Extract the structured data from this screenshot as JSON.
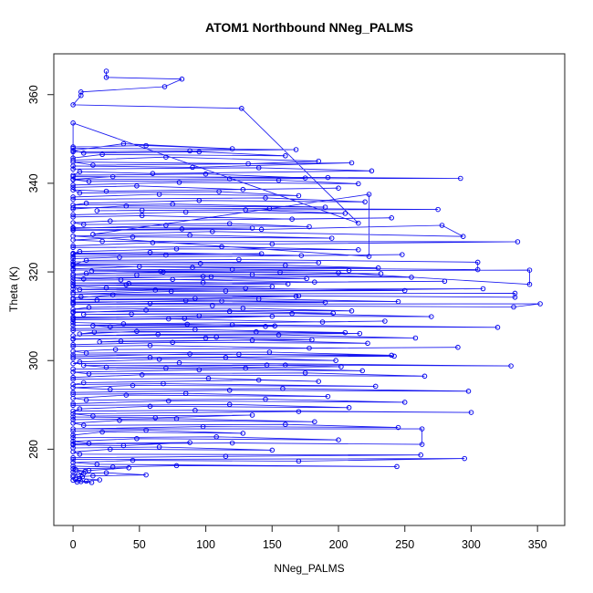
{
  "chart_data": {
    "type": "line",
    "title": "ATOM1 Northbound NNeg_PALMS",
    "xlabel": "NNeg_PALMS",
    "ylabel": "Theta (K)",
    "xlim": [
      -14.5,
      370.5
    ],
    "ylim": [
      262.8,
      369.2
    ],
    "xticks": [
      0,
      50,
      100,
      150,
      200,
      250,
      300,
      350
    ],
    "yticks": [
      280,
      300,
      320,
      340,
      360
    ],
    "grid": false,
    "legend": "none",
    "marker": "open-circle",
    "series_color": "#0000EE",
    "axis_color": "#333333",
    "text_color": "#000000",
    "points": [
      [
        25,
        365.3
      ],
      [
        25,
        363.9
      ],
      [
        82,
        363.5
      ],
      [
        69,
        361.8
      ],
      [
        6,
        360.6
      ],
      [
        6,
        359.8
      ],
      [
        0,
        357.7
      ],
      [
        127,
        356.9
      ],
      [
        215,
        331.0
      ],
      [
        0,
        353.6
      ],
      [
        0,
        348.2
      ],
      [
        55,
        348.5
      ],
      [
        120,
        347.8
      ],
      [
        38,
        348.9
      ],
      [
        0,
        347.4
      ],
      [
        8,
        346.8
      ],
      [
        95,
        347.1
      ],
      [
        160,
        346.2
      ],
      [
        22,
        346.5
      ],
      [
        0,
        345.7
      ],
      [
        0,
        347.9
      ],
      [
        168,
        347.6
      ],
      [
        88,
        347.3
      ],
      [
        0,
        347.1
      ],
      [
        0,
        345.2
      ],
      [
        70,
        345.9
      ],
      [
        185,
        345.0
      ],
      [
        132,
        344.4
      ],
      [
        0,
        344.8
      ],
      [
        15,
        344.1
      ],
      [
        210,
        344.6
      ],
      [
        90,
        343.6
      ],
      [
        0,
        343.9
      ],
      [
        0,
        343.2
      ],
      [
        140,
        343.5
      ],
      [
        225,
        342.8
      ],
      [
        60,
        342.2
      ],
      [
        5,
        342.6
      ],
      [
        0,
        341.8
      ],
      [
        100,
        342.1
      ],
      [
        175,
        341.2
      ],
      [
        30,
        341.5
      ],
      [
        0,
        340.9
      ],
      [
        0,
        341.5
      ],
      [
        192,
        341.3
      ],
      [
        292,
        341.1
      ],
      [
        118,
        341.0
      ],
      [
        0,
        340.8
      ],
      [
        12,
        340.4
      ],
      [
        155,
        340.7
      ],
      [
        215,
        339.9
      ],
      [
        80,
        340.2
      ],
      [
        0,
        339.6
      ],
      [
        0,
        339.1
      ],
      [
        48,
        339.4
      ],
      [
        128,
        338.6
      ],
      [
        200,
        338.9
      ],
      [
        25,
        338.2
      ],
      [
        0,
        338.5
      ],
      [
        5,
        337.8
      ],
      [
        110,
        338.1
      ],
      [
        170,
        337.2
      ],
      [
        65,
        337.5
      ],
      [
        0,
        336.9
      ],
      [
        0,
        336.4
      ],
      [
        145,
        336.7
      ],
      [
        220,
        335.8
      ],
      [
        95,
        336.1
      ],
      [
        10,
        335.5
      ],
      [
        0,
        335.1
      ],
      [
        75,
        335.3
      ],
      [
        190,
        334.6
      ],
      [
        40,
        334.9
      ],
      [
        0,
        334.2
      ],
      [
        0,
        334.5
      ],
      [
        148,
        334.3
      ],
      [
        275,
        334.1
      ],
      [
        52,
        333.9
      ],
      [
        18,
        333.8
      ],
      [
        130,
        334.0
      ],
      [
        205,
        333.2
      ],
      [
        85,
        333.5
      ],
      [
        0,
        332.9
      ],
      [
        0,
        332.4
      ],
      [
        52,
        332.7
      ],
      [
        165,
        331.9
      ],
      [
        240,
        332.2
      ],
      [
        28,
        331.5
      ],
      [
        0,
        331.1
      ],
      [
        8,
        330.7
      ],
      [
        118,
        330.9
      ],
      [
        178,
        330.2
      ],
      [
        70,
        330.5
      ],
      [
        0,
        329.8
      ],
      [
        0,
        330.0
      ],
      [
        135,
        329.9
      ],
      [
        82,
        329.7
      ],
      [
        0,
        329.5
      ],
      [
        0,
        329.4
      ],
      [
        142,
        329.6
      ],
      [
        278,
        330.5
      ],
      [
        294,
        328.0
      ],
      [
        105,
        329.1
      ],
      [
        15,
        328.5
      ],
      [
        223,
        337.5
      ],
      [
        223,
        323.5
      ],
      [
        0,
        328.1
      ],
      [
        88,
        328.3
      ],
      [
        195,
        327.6
      ],
      [
        45,
        327.9
      ],
      [
        0,
        327.2
      ],
      [
        22,
        326.9
      ],
      [
        335,
        326.8
      ],
      [
        150,
        326.3
      ],
      [
        60,
        326.6
      ],
      [
        0,
        325.9
      ],
      [
        0,
        325.5
      ],
      [
        112,
        325.7
      ],
      [
        215,
        325.0
      ],
      [
        78,
        325.2
      ],
      [
        5,
        324.6
      ],
      [
        0,
        324.2
      ],
      [
        58,
        324.4
      ],
      [
        172,
        323.7
      ],
      [
        248,
        323.9
      ],
      [
        35,
        323.3
      ],
      [
        0,
        323.0
      ],
      [
        0,
        324.0
      ],
      [
        142,
        324.1
      ],
      [
        70,
        323.8
      ],
      [
        0,
        323.5
      ],
      [
        0,
        322.3
      ],
      [
        185,
        322.1
      ],
      [
        96,
        321.9
      ],
      [
        0,
        321.6
      ],
      [
        10,
        322.6
      ],
      [
        125,
        322.8
      ],
      [
        305,
        322.2
      ],
      [
        305,
        320.5
      ],
      [
        90,
        321.0
      ],
      [
        0,
        321.4
      ],
      [
        0,
        321.8
      ],
      [
        160,
        321.5
      ],
      [
        230,
        320.9
      ],
      [
        50,
        321.2
      ],
      [
        0,
        320.7
      ],
      [
        0,
        320.4
      ],
      [
        120,
        320.6
      ],
      [
        208,
        320.3
      ],
      [
        66,
        320.1
      ],
      [
        14,
        320.2
      ],
      [
        344,
        320.4
      ],
      [
        344,
        317.2
      ],
      [
        200,
        319.8
      ],
      [
        68,
        320.0
      ],
      [
        0,
        319.5
      ],
      [
        10,
        319.7
      ],
      [
        156,
        319.9
      ],
      [
        232,
        319.6
      ],
      [
        48,
        319.3
      ],
      [
        0,
        319.2
      ],
      [
        135,
        319.4
      ],
      [
        255,
        318.8
      ],
      [
        98,
        319.0
      ],
      [
        8,
        318.4
      ],
      [
        0,
        318.7
      ],
      [
        104,
        318.9
      ],
      [
        176,
        318.5
      ],
      [
        36,
        318.2
      ],
      [
        0,
        318.1
      ],
      [
        75,
        318.3
      ],
      [
        182,
        317.7
      ],
      [
        280,
        317.9
      ],
      [
        42,
        317.4
      ],
      [
        0,
        317.5
      ],
      [
        98,
        317.6
      ],
      [
        162,
        317.3
      ],
      [
        40,
        317.1
      ],
      [
        0,
        317.0
      ],
      [
        150,
        316.7
      ],
      [
        25,
        316.4
      ],
      [
        0,
        316.8
      ],
      [
        5,
        316.0
      ],
      [
        309,
        316.2
      ],
      [
        115,
        315.7
      ],
      [
        62,
        315.9
      ],
      [
        0,
        315.4
      ],
      [
        0,
        316.1
      ],
      [
        130,
        316.3
      ],
      [
        250,
        315.8
      ],
      [
        74,
        315.6
      ],
      [
        0,
        315.0
      ],
      [
        333,
        315.2
      ],
      [
        333,
        314.3
      ],
      [
        170,
        314.6
      ],
      [
        30,
        314.8
      ],
      [
        0,
        314.1
      ],
      [
        6,
        314.4
      ],
      [
        168,
        314.5
      ],
      [
        92,
        314.0
      ],
      [
        0,
        313.8
      ],
      [
        18,
        313.7
      ],
      [
        140,
        313.9
      ],
      [
        245,
        313.3
      ],
      [
        85,
        313.5
      ],
      [
        0,
        313.0
      ],
      [
        0,
        313.2
      ],
      [
        112,
        313.4
      ],
      [
        190,
        313.1
      ],
      [
        58,
        312.9
      ],
      [
        0,
        312.7
      ],
      [
        352,
        312.8
      ],
      [
        332,
        312.1
      ],
      [
        105,
        312.4
      ],
      [
        12,
        312.0
      ],
      [
        0,
        311.6
      ],
      [
        128,
        311.8
      ],
      [
        210,
        311.2
      ],
      [
        55,
        311.4
      ],
      [
        0,
        310.8
      ],
      [
        0,
        311.0
      ],
      [
        118,
        311.1
      ],
      [
        196,
        310.7
      ],
      [
        44,
        310.5
      ],
      [
        8,
        310.4
      ],
      [
        165,
        310.6
      ],
      [
        270,
        309.9
      ],
      [
        95,
        310.1
      ],
      [
        0,
        309.6
      ],
      [
        0,
        309.8
      ],
      [
        150,
        310.0
      ],
      [
        84,
        309.5
      ],
      [
        0,
        309.3
      ],
      [
        0,
        309.2
      ],
      [
        72,
        309.4
      ],
      [
        188,
        308.7
      ],
      [
        235,
        308.9
      ],
      [
        38,
        308.3
      ],
      [
        0,
        308.6
      ],
      [
        0,
        308.0
      ],
      [
        86,
        308.2
      ],
      [
        152,
        307.8
      ],
      [
        28,
        307.6
      ],
      [
        15,
        307.9
      ],
      [
        120,
        308.1
      ],
      [
        320,
        307.5
      ],
      [
        145,
        307.7
      ],
      [
        0,
        307.2
      ],
      [
        0,
        306.8
      ],
      [
        92,
        307.0
      ],
      [
        205,
        306.3
      ],
      [
        48,
        306.6
      ],
      [
        5,
        306.0
      ],
      [
        16,
        306.4
      ],
      [
        138,
        306.5
      ],
      [
        216,
        306.1
      ],
      [
        64,
        305.9
      ],
      [
        0,
        305.6
      ],
      [
        155,
        305.8
      ],
      [
        258,
        305.1
      ],
      [
        108,
        305.3
      ],
      [
        0,
        304.8
      ],
      [
        0,
        304.9
      ],
      [
        100,
        305.1
      ],
      [
        180,
        304.7
      ],
      [
        36,
        304.4
      ],
      [
        20,
        304.2
      ],
      [
        135,
        304.6
      ],
      [
        222,
        303.9
      ],
      [
        75,
        304.1
      ],
      [
        0,
        303.6
      ],
      [
        0,
        303.2
      ],
      [
        58,
        303.4
      ],
      [
        178,
        302.8
      ],
      [
        290,
        303.0
      ],
      [
        32,
        302.5
      ],
      [
        0,
        302.1
      ],
      [
        10,
        301.7
      ],
      [
        148,
        301.9
      ],
      [
        240,
        301.2
      ],
      [
        88,
        301.5
      ],
      [
        0,
        300.9
      ],
      [
        0,
        301.3
      ],
      [
        125,
        301.4
      ],
      [
        242,
        301.0
      ],
      [
        58,
        300.7
      ],
      [
        0,
        300.5
      ],
      [
        115,
        300.7
      ],
      [
        198,
        300.0
      ],
      [
        65,
        300.3
      ],
      [
        5,
        299.7
      ],
      [
        0,
        299.3
      ],
      [
        80,
        299.5
      ],
      [
        330,
        298.8
      ],
      [
        160,
        299.0
      ],
      [
        25,
        298.5
      ],
      [
        8,
        298.9
      ],
      [
        146,
        299.0
      ],
      [
        202,
        298.6
      ],
      [
        70,
        298.3
      ],
      [
        0,
        298.1
      ],
      [
        130,
        298.3
      ],
      [
        218,
        297.7
      ],
      [
        95,
        297.9
      ],
      [
        0,
        297.4
      ],
      [
        12,
        297.0
      ],
      [
        175,
        297.2
      ],
      [
        265,
        296.5
      ],
      [
        52,
        296.8
      ],
      [
        0,
        296.2
      ],
      [
        0,
        295.8
      ],
      [
        102,
        296.0
      ],
      [
        185,
        295.3
      ],
      [
        140,
        295.6
      ],
      [
        8,
        295.0
      ],
      [
        0,
        294.6
      ],
      [
        68,
        294.8
      ],
      [
        228,
        294.2
      ],
      [
        45,
        294.4
      ],
      [
        0,
        293.9
      ],
      [
        28,
        293.5
      ],
      [
        158,
        293.7
      ],
      [
        298,
        293.1
      ],
      [
        118,
        293.3
      ],
      [
        0,
        292.8
      ],
      [
        0,
        292.4
      ],
      [
        85,
        292.6
      ],
      [
        192,
        291.9
      ],
      [
        40,
        292.2
      ],
      [
        0,
        291.5
      ],
      [
        10,
        291.1
      ],
      [
        145,
        291.3
      ],
      [
        250,
        290.6
      ],
      [
        72,
        290.9
      ],
      [
        0,
        290.3
      ],
      [
        0,
        289.9
      ],
      [
        118,
        290.1
      ],
      [
        208,
        289.4
      ],
      [
        58,
        289.7
      ],
      [
        5,
        289.1
      ],
      [
        0,
        288.6
      ],
      [
        92,
        288.8
      ],
      [
        300,
        288.3
      ],
      [
        170,
        288.5
      ],
      [
        0,
        288.0
      ],
      [
        15,
        287.5
      ],
      [
        135,
        287.7
      ],
      [
        62,
        287.1
      ],
      [
        0,
        287.3
      ],
      [
        0,
        286.7
      ],
      [
        78,
        286.9
      ],
      [
        182,
        286.2
      ],
      [
        35,
        286.5
      ],
      [
        0,
        285.9
      ],
      [
        8,
        285.4
      ],
      [
        160,
        285.6
      ],
      [
        245,
        284.9
      ],
      [
        98,
        285.1
      ],
      [
        0,
        284.6
      ],
      [
        263,
        284.6
      ],
      [
        263,
        281.1
      ],
      [
        120,
        281.4
      ],
      [
        0,
        281.2
      ],
      [
        0,
        284.1
      ],
      [
        55,
        284.3
      ],
      [
        128,
        283.6
      ],
      [
        22,
        283.9
      ],
      [
        0,
        283.2
      ],
      [
        0,
        282.6
      ],
      [
        108,
        282.8
      ],
      [
        200,
        282.1
      ],
      [
        48,
        282.4
      ],
      [
        0,
        281.8
      ],
      [
        12,
        281.3
      ],
      [
        88,
        281.5
      ],
      [
        38,
        280.8
      ],
      [
        0,
        281.0
      ],
      [
        0,
        280.3
      ],
      [
        65,
        280.5
      ],
      [
        150,
        279.8
      ],
      [
        28,
        280.0
      ],
      [
        0,
        279.4
      ],
      [
        5,
        278.9
      ],
      [
        262,
        278.7
      ],
      [
        115,
        278.4
      ],
      [
        0,
        278.1
      ],
      [
        0,
        277.7
      ],
      [
        295,
        277.9
      ],
      [
        170,
        277.3
      ],
      [
        45,
        277.5
      ],
      [
        0,
        277.0
      ],
      [
        18,
        276.6
      ],
      [
        244,
        276.1
      ],
      [
        78,
        276.3
      ],
      [
        30,
        276.0
      ],
      [
        0,
        276.2
      ],
      [
        0,
        275.6
      ],
      [
        42,
        275.8
      ],
      [
        12,
        275.2
      ],
      [
        0,
        274.9
      ],
      [
        2,
        275.4
      ],
      [
        9,
        275.0
      ],
      [
        4,
        274.3
      ],
      [
        0,
        274.1
      ],
      [
        8,
        274.5
      ],
      [
        25,
        274.7
      ],
      [
        55,
        274.2
      ],
      [
        15,
        274.0
      ],
      [
        0,
        273.7
      ],
      [
        7,
        273.8
      ],
      [
        2,
        273.2
      ],
      [
        5,
        273.4
      ],
      [
        20,
        273.1
      ],
      [
        10,
        272.8
      ],
      [
        3,
        272.6
      ],
      [
        0,
        273.0
      ],
      [
        14,
        272.5
      ],
      [
        6,
        272.7
      ]
    ]
  }
}
